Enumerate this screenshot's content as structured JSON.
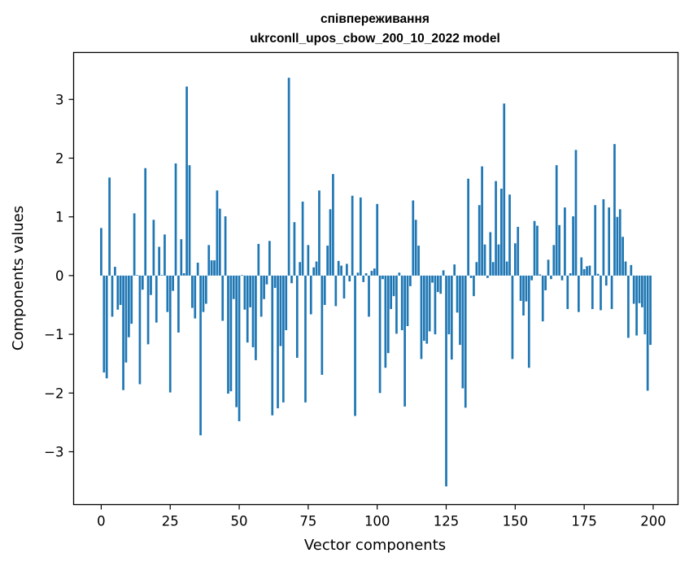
{
  "chart_data": {
    "type": "bar",
    "title": "співпереживання",
    "subtitle": "ukrconll_upos_cbow_200_10_2022 model",
    "xlabel": "Vector components",
    "ylabel": "Components values",
    "xlim": [
      -10,
      209
    ],
    "ylim": [
      -3.9,
      3.8
    ],
    "xticks": [
      0,
      25,
      50,
      75,
      100,
      125,
      150,
      175,
      200
    ],
    "yticks": [
      -3,
      -2,
      -1,
      0,
      1,
      2,
      3
    ],
    "xtick_labels": [
      "0",
      "25",
      "50",
      "75",
      "100",
      "125",
      "150",
      "175",
      "200"
    ],
    "ytick_labels": [
      "−3",
      "−2",
      "−1",
      "0",
      "1",
      "2",
      "3"
    ],
    "bar_color": "#1f77b4",
    "grid": false,
    "x": [
      0,
      1,
      2,
      3,
      4,
      5,
      6,
      7,
      8,
      9,
      10,
      11,
      12,
      13,
      14,
      15,
      16,
      17,
      18,
      19,
      20,
      21,
      22,
      23,
      24,
      25,
      26,
      27,
      28,
      29,
      30,
      31,
      32,
      33,
      34,
      35,
      36,
      37,
      38,
      39,
      40,
      41,
      42,
      43,
      44,
      45,
      46,
      47,
      48,
      49,
      50,
      51,
      52,
      53,
      54,
      55,
      56,
      57,
      58,
      59,
      60,
      61,
      62,
      63,
      64,
      65,
      66,
      67,
      68,
      69,
      70,
      71,
      72,
      73,
      74,
      75,
      76,
      77,
      78,
      79,
      80,
      81,
      82,
      83,
      84,
      85,
      86,
      87,
      88,
      89,
      90,
      91,
      92,
      93,
      94,
      95,
      96,
      97,
      98,
      99,
      100,
      101,
      102,
      103,
      104,
      105,
      106,
      107,
      108,
      109,
      110,
      111,
      112,
      113,
      114,
      115,
      116,
      117,
      118,
      119,
      120,
      121,
      122,
      123,
      124,
      125,
      126,
      127,
      128,
      129,
      130,
      131,
      132,
      133,
      134,
      135,
      136,
      137,
      138,
      139,
      140,
      141,
      142,
      143,
      144,
      145,
      146,
      147,
      148,
      149,
      150,
      151,
      152,
      153,
      154,
      155,
      156,
      157,
      158,
      159,
      160,
      161,
      162,
      163,
      164,
      165,
      166,
      167,
      168,
      169,
      170,
      171,
      172,
      173,
      174,
      175,
      176,
      177,
      178,
      179,
      180,
      181,
      182,
      183,
      184,
      185,
      186,
      187,
      188,
      189,
      190,
      191,
      192,
      193,
      194,
      195,
      196,
      197,
      198,
      199
    ],
    "values": [
      0.81,
      -1.65,
      -1.75,
      1.67,
      -0.7,
      0.15,
      -0.58,
      -0.5,
      -1.95,
      -1.48,
      -1.05,
      -0.82,
      1.06,
      0.01,
      -1.85,
      -0.24,
      1.83,
      -1.17,
      -0.33,
      0.95,
      -0.8,
      0.49,
      0.01,
      0.7,
      -0.62,
      -1.99,
      -0.26,
      1.91,
      -0.97,
      0.62,
      0.04,
      3.22,
      1.88,
      -0.55,
      -0.73,
      0.22,
      -2.72,
      -0.62,
      -0.48,
      0.52,
      0.26,
      0.26,
      1.45,
      1.14,
      -0.77,
      1.01,
      -2.01,
      -1.97,
      -0.4,
      -2.24,
      -2.48,
      0.01,
      -0.58,
      -1.14,
      -0.54,
      -1.22,
      -1.44,
      0.54,
      -0.7,
      -0.4,
      -0.15,
      0.59,
      -2.38,
      -0.21,
      -2.26,
      -1.2,
      -2.16,
      -0.93,
      3.37,
      -0.13,
      0.91,
      -1.4,
      0.23,
      1.26,
      -2.16,
      0.52,
      -0.66,
      0.14,
      0.24,
      1.45,
      -1.69,
      -0.5,
      0.51,
      1.13,
      1.73,
      -0.52,
      0.25,
      0.17,
      -0.39,
      0.2,
      -0.1,
      1.36,
      -2.39,
      0.05,
      1.33,
      -0.11,
      0.04,
      -0.7,
      0.08,
      0.12,
      1.22,
      -2.0,
      -0.06,
      -1.57,
      -1.32,
      -0.57,
      -0.35,
      -0.99,
      0.05,
      -0.93,
      -2.23,
      -0.86,
      -0.18,
      1.28,
      0.95,
      0.51,
      -1.42,
      -1.11,
      -1.16,
      -0.95,
      -0.12,
      -1.0,
      -0.28,
      -0.31,
      0.09,
      -3.59,
      -1.0,
      -1.43,
      0.19,
      -0.63,
      -1.18,
      -1.92,
      -2.25,
      1.65,
      -0.04,
      -0.35,
      0.23,
      1.2,
      1.86,
      0.53,
      -0.04,
      0.74,
      0.23,
      1.61,
      0.53,
      1.48,
      2.93,
      0.24,
      1.38,
      -1.42,
      0.55,
      0.83,
      -0.43,
      -0.68,
      -0.44,
      -1.57,
      -0.08,
      0.93,
      0.85,
      0.02,
      -0.78,
      -0.25,
      0.27,
      -0.06,
      0.52,
      1.88,
      0.86,
      -0.08,
      1.16,
      -0.57,
      0.04,
      1.01,
      2.14,
      -0.62,
      0.31,
      0.11,
      0.16,
      0.17,
      -0.57,
      1.2,
      0.03,
      -0.59,
      1.3,
      -0.17,
      1.16,
      -0.57,
      2.24,
      1.0,
      1.13,
      0.66,
      0.24,
      -1.06,
      0.18,
      -0.48,
      -1.02,
      -0.47,
      -0.54,
      -1.0,
      -1.96,
      -1.18
    ]
  }
}
